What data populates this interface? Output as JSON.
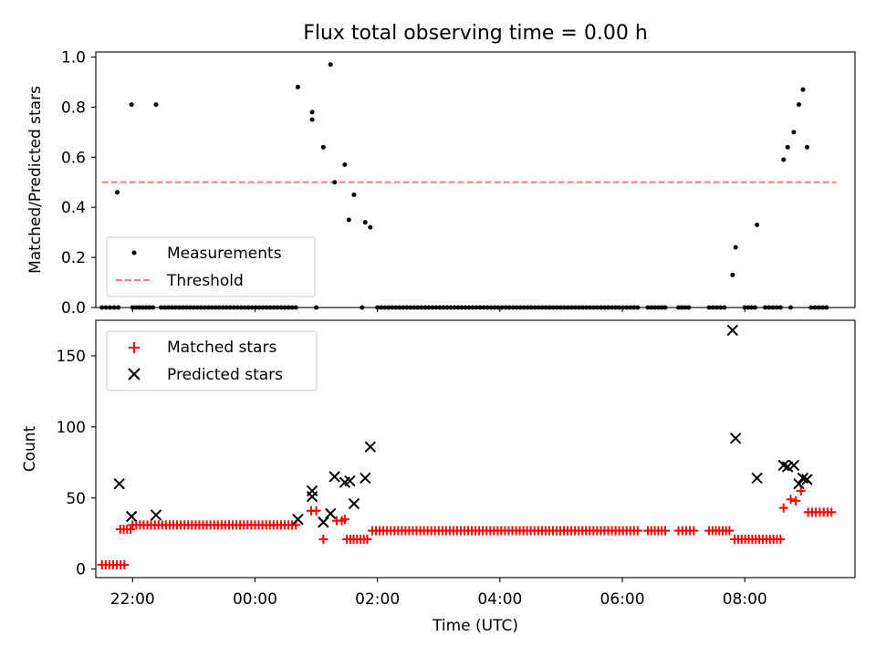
{
  "colors": {
    "measurement": "#000000",
    "threshold": "#ff7f7f",
    "matched": "#ff0000",
    "predicted": "#000000"
  },
  "chart_data": [
    {
      "type": "scatter",
      "title": "Flux total observing time = 0.00 h",
      "xlabel": "",
      "ylabel": "Matched/Predicted stars",
      "xlim": [
        "21:24",
        "09:48"
      ],
      "ylim": [
        0,
        1.02
      ],
      "yticks": [
        "0.0",
        "0.2",
        "0.4",
        "0.6",
        "0.8",
        "1.0"
      ],
      "yticks_values": [
        0,
        0.2,
        0.4,
        0.6,
        0.8,
        1.0
      ],
      "xticks_values": [
        "22:00",
        "00:00",
        "02:00",
        "04:00",
        "06:00",
        "08:00"
      ],
      "legend": {
        "location": "lower-left",
        "entries": [
          "Measurements",
          "Threshold"
        ]
      },
      "threshold": {
        "name": "Threshold",
        "y": 0.5,
        "x_range": [
          "21:30",
          "09:30"
        ]
      },
      "series": [
        {
          "name": "Measurements",
          "zero_ranges": [
            [
              "21:30",
              "21:46"
            ],
            [
              "22:00",
              "22:20"
            ],
            [
              "22:28",
              "00:40"
            ],
            [
              "01:00",
              "01:00"
            ],
            [
              "01:45",
              "01:45"
            ],
            [
              "02:00",
              "06:15"
            ],
            [
              "06:25",
              "06:42"
            ],
            [
              "06:55",
              "07:05"
            ],
            [
              "07:25",
              "07:40"
            ],
            [
              "08:00",
              "08:10"
            ],
            [
              "08:20",
              "08:35"
            ],
            [
              "08:45",
              "08:45"
            ],
            [
              "09:05",
              "09:20"
            ]
          ],
          "points": [
            {
              "x": "21:45",
              "y": 0.46
            },
            {
              "x": "21:59",
              "y": 0.81
            },
            {
              "x": "22:23",
              "y": 0.81
            },
            {
              "x": "00:42",
              "y": 0.88
            },
            {
              "x": "00:56",
              "y": 0.78
            },
            {
              "x": "00:56",
              "y": 0.75
            },
            {
              "x": "01:07",
              "y": 0.64
            },
            {
              "x": "01:14",
              "y": 0.97
            },
            {
              "x": "01:18",
              "y": 0.5
            },
            {
              "x": "01:28",
              "y": 0.57
            },
            {
              "x": "01:32",
              "y": 0.35
            },
            {
              "x": "01:37",
              "y": 0.45
            },
            {
              "x": "01:48",
              "y": 0.34
            },
            {
              "x": "01:53",
              "y": 0.32
            },
            {
              "x": "07:48",
              "y": 0.13
            },
            {
              "x": "07:51",
              "y": 0.24
            },
            {
              "x": "08:12",
              "y": 0.33
            },
            {
              "x": "08:38",
              "y": 0.59
            },
            {
              "x": "08:42",
              "y": 0.64
            },
            {
              "x": "08:48",
              "y": 0.7
            },
            {
              "x": "08:53",
              "y": 0.81
            },
            {
              "x": "08:57",
              "y": 0.87
            },
            {
              "x": "09:01",
              "y": 0.64
            }
          ]
        }
      ]
    },
    {
      "type": "scatter",
      "title": "",
      "xlabel": "Time (UTC)",
      "ylabel": "Count",
      "xlim": [
        "21:24",
        "09:48"
      ],
      "ylim": [
        -6,
        175
      ],
      "yticks": [
        "0",
        "50",
        "100",
        "150"
      ],
      "yticks_values": [
        0,
        50,
        100,
        150
      ],
      "xticks": [
        "22:00",
        "00:00",
        "02:00",
        "04:00",
        "06:00",
        "08:00"
      ],
      "legend": {
        "location": "upper-left",
        "entries": [
          "Matched stars",
          "Predicted stars"
        ]
      },
      "series": [
        {
          "name": "Matched stars",
          "marker": "plus",
          "runs": [
            {
              "from": "21:30",
              "to": "21:52",
              "y": 3
            },
            {
              "from": "21:48",
              "to": "21:58",
              "y": 28
            },
            {
              "from": "22:00",
              "to": "00:40",
              "y": 31
            },
            {
              "from": "00:55",
              "to": "01:00",
              "y": 41
            },
            {
              "from": "01:20",
              "to": "01:25",
              "y": 34
            },
            {
              "from": "01:30",
              "to": "01:50",
              "y": 21
            },
            {
              "from": "01:55",
              "to": "06:15",
              "y": 27
            },
            {
              "from": "06:25",
              "to": "06:42",
              "y": 27
            },
            {
              "from": "06:55",
              "to": "07:10",
              "y": 27
            },
            {
              "from": "07:25",
              "to": "07:45",
              "y": 27
            },
            {
              "from": "07:50",
              "to": "08:35",
              "y": 21
            },
            {
              "from": "09:02",
              "to": "09:25",
              "y": 40
            }
          ],
          "points": [
            {
              "x": "01:07",
              "y": 21
            },
            {
              "x": "01:28",
              "y": 35
            },
            {
              "x": "08:38",
              "y": 43
            },
            {
              "x": "08:45",
              "y": 49
            },
            {
              "x": "08:50",
              "y": 48
            },
            {
              "x": "08:55",
              "y": 55
            }
          ]
        },
        {
          "name": "Predicted stars",
          "marker": "x",
          "points": [
            {
              "x": "21:47",
              "y": 60
            },
            {
              "x": "21:59",
              "y": 37
            },
            {
              "x": "22:23",
              "y": 38
            },
            {
              "x": "00:42",
              "y": 35
            },
            {
              "x": "00:56",
              "y": 55
            },
            {
              "x": "00:56",
              "y": 51
            },
            {
              "x": "01:07",
              "y": 33
            },
            {
              "x": "01:14",
              "y": 39
            },
            {
              "x": "01:18",
              "y": 65
            },
            {
              "x": "01:28",
              "y": 61
            },
            {
              "x": "01:33",
              "y": 62
            },
            {
              "x": "01:37",
              "y": 46
            },
            {
              "x": "01:48",
              "y": 64
            },
            {
              "x": "01:53",
              "y": 86
            },
            {
              "x": "07:48",
              "y": 168
            },
            {
              "x": "07:51",
              "y": 92
            },
            {
              "x": "08:12",
              "y": 64
            },
            {
              "x": "08:38",
              "y": 73
            },
            {
              "x": "08:42",
              "y": 72
            },
            {
              "x": "08:48",
              "y": 73
            },
            {
              "x": "08:53",
              "y": 60
            },
            {
              "x": "08:57",
              "y": 64
            },
            {
              "x": "09:01",
              "y": 63
            }
          ]
        }
      ]
    }
  ]
}
